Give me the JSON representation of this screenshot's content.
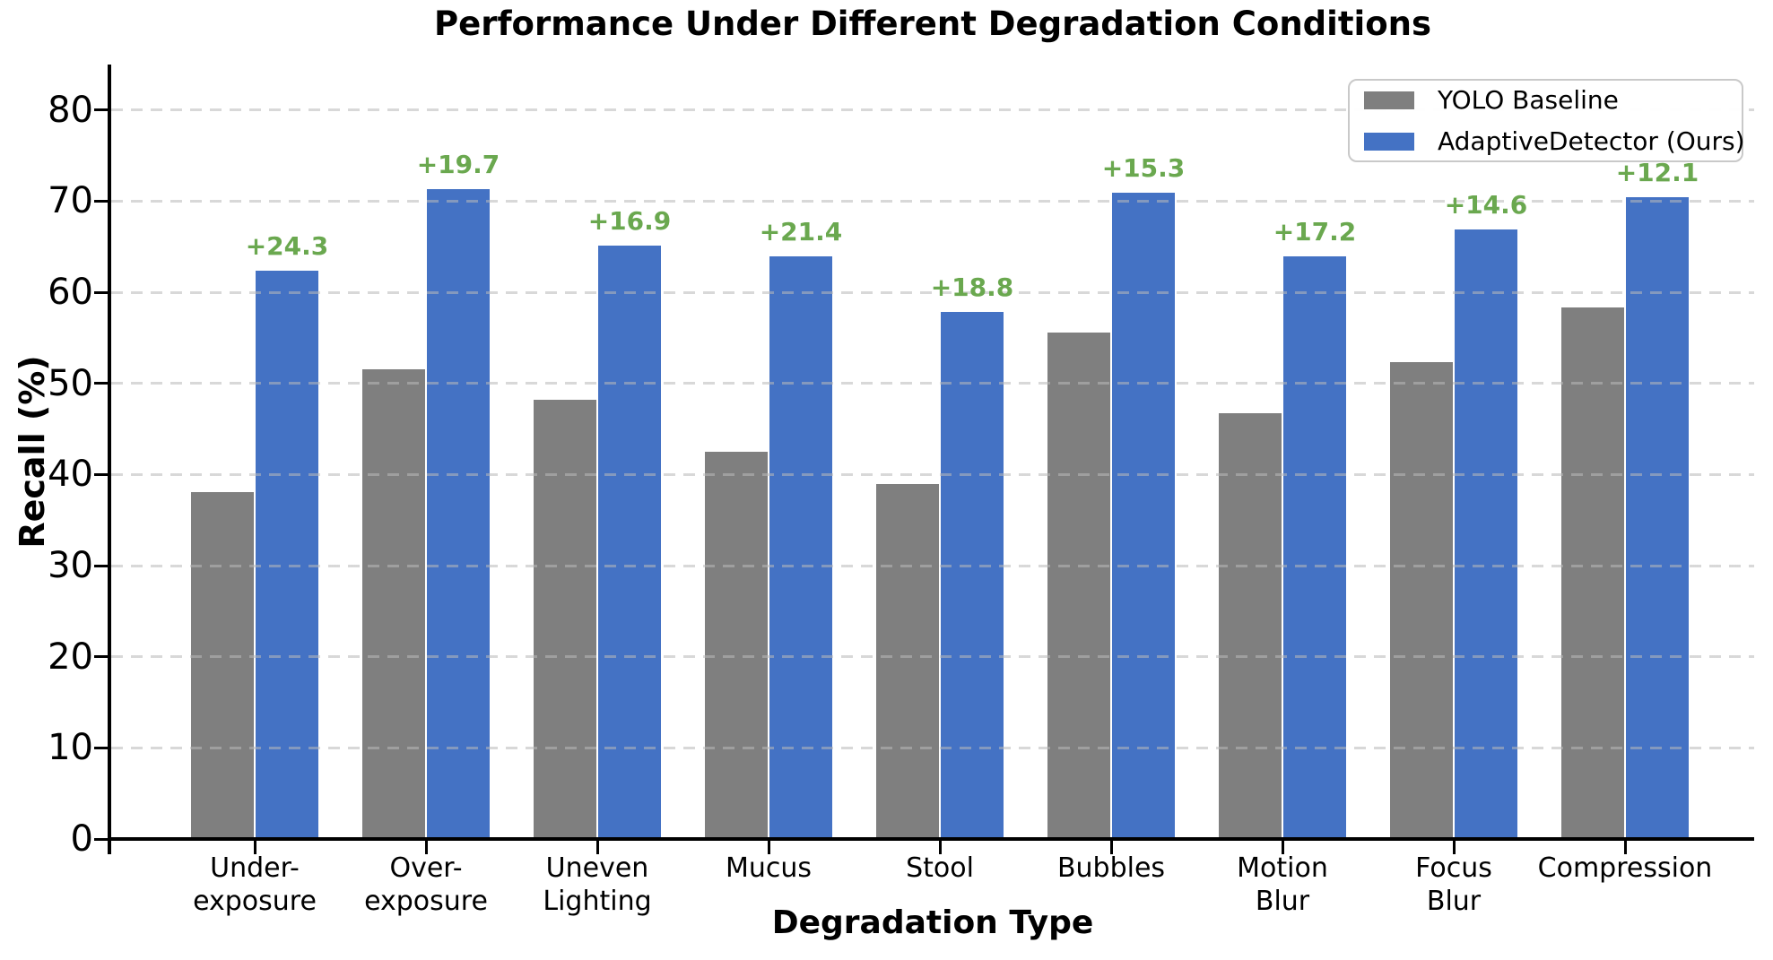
{
  "chart_data": {
    "type": "bar",
    "title": "Performance Under Different Degradation Conditions",
    "xlabel": "Degradation Type",
    "ylabel": "Recall (%)",
    "categories": [
      [
        "Under-",
        "exposure"
      ],
      [
        "Over-",
        "exposure"
      ],
      [
        "Uneven",
        "Lighting"
      ],
      [
        "Mucus"
      ],
      [
        "Stool"
      ],
      [
        "Bubbles"
      ],
      [
        "Motion",
        "Blur"
      ],
      [
        "Focus",
        "Blur"
      ],
      [
        "Compression"
      ]
    ],
    "series": [
      {
        "name": "YOLO Baseline",
        "color": "#7f7f7f",
        "values": [
          38.1,
          51.6,
          48.2,
          42.5,
          39.0,
          55.6,
          46.7,
          52.3,
          58.3
        ]
      },
      {
        "name": "AdaptiveDetector (Ours)",
        "color": "#4472c4",
        "values": [
          62.4,
          71.3,
          65.1,
          63.9,
          57.8,
          70.9,
          63.9,
          66.9,
          70.4
        ]
      }
    ],
    "improvement_labels": [
      "+24.3",
      "+19.7",
      "+16.9",
      "+21.4",
      "+18.8",
      "+15.3",
      "+17.2",
      "+14.6",
      "+12.1"
    ],
    "improvement_color": "#6aa84f",
    "yticks": [
      0,
      10,
      20,
      30,
      40,
      50,
      60,
      70,
      80
    ],
    "ylim": [
      0,
      85
    ],
    "grid": "horizontal dashed, drawn over bars",
    "legend_position": "upper right"
  }
}
